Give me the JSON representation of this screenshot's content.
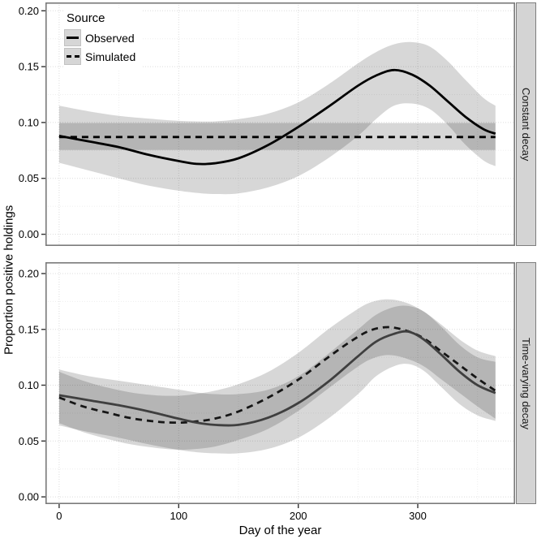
{
  "figure": {
    "x_axis_title": "Day of the year",
    "y_axis_title": "Proportion positive holdings"
  },
  "legend": {
    "title": "Source",
    "items": [
      {
        "label": "Observed",
        "line_style": "solid"
      },
      {
        "label": "Simulated",
        "line_style": "dashed"
      }
    ]
  },
  "facets": [
    {
      "label": "Constant decay"
    },
    {
      "label": "Time-varying decay"
    }
  ],
  "colors": {
    "ribbon_fill": "rgba(0,0,0,0.155)",
    "panel_border": "#7a7a7a",
    "strip_bg": "#d4d4d4",
    "grid_major": "#dcdcdc",
    "grid_minor": "#eeeeee",
    "tick_mark": "#333333"
  },
  "chart_data": [
    {
      "type": "line",
      "facet": "Constant decay",
      "xlabel": "Day of the year",
      "ylabel": "Proportion positive holdings",
      "xlim": [
        -11.5,
        381.4
      ],
      "ylim": [
        -0.0105,
        0.2075
      ],
      "x_ticks": [
        0,
        100,
        200,
        300
      ],
      "x_tick_labels": [
        "0",
        "100",
        "200",
        "300"
      ],
      "x_minor": [
        50,
        150,
        250,
        350
      ],
      "y_ticks": [
        0.0,
        0.05,
        0.1,
        0.15,
        0.2
      ],
      "y_tick_labels": [
        "0.00",
        "0.05",
        "0.10",
        "0.15",
        "0.20"
      ],
      "y_minor": [
        0.025,
        0.075,
        0.125,
        0.175
      ],
      "grid": true,
      "legend_position": "inside-top-left",
      "series": [
        {
          "name": "Simulated",
          "style": "dashed",
          "color": "#000000",
          "x": [
            0,
            365
          ],
          "y": [
            0.087,
            0.087
          ],
          "ribbon": {
            "x": [
              0,
              365
            ],
            "upper": [
              0.0995,
              0.0995
            ],
            "lower": [
              0.0755,
              0.0755
            ]
          }
        },
        {
          "name": "Observed",
          "style": "solid",
          "color": "#000000",
          "x": [
            0,
            25,
            50,
            75,
            100,
            115,
            130,
            150,
            175,
            200,
            225,
            250,
            265,
            280,
            295,
            310,
            325,
            340,
            355,
            365
          ],
          "y": [
            0.088,
            0.083,
            0.078,
            0.071,
            0.0655,
            0.063,
            0.0635,
            0.068,
            0.08,
            0.096,
            0.114,
            0.133,
            0.142,
            0.147,
            0.143,
            0.133,
            0.119,
            0.105,
            0.094,
            0.09
          ],
          "ribbon": {
            "x": [
              0,
              25,
              50,
              75,
              100,
              115,
              130,
              150,
              175,
              200,
              225,
              250,
              265,
              280,
              295,
              310,
              325,
              340,
              355,
              365
            ],
            "upper": [
              0.115,
              0.11,
              0.106,
              0.1035,
              0.1015,
              0.101,
              0.101,
              0.103,
              0.108,
              0.118,
              0.134,
              0.153,
              0.163,
              0.17,
              0.172,
              0.168,
              0.155,
              0.138,
              0.122,
              0.115
            ],
            "lower": [
              0.064,
              0.057,
              0.05,
              0.0435,
              0.039,
              0.037,
              0.036,
              0.0365,
              0.042,
              0.052,
              0.068,
              0.088,
              0.103,
              0.115,
              0.117,
              0.112,
              0.098,
              0.08,
              0.066,
              0.061
            ]
          }
        }
      ]
    },
    {
      "type": "line",
      "facet": "Time-varying decay",
      "xlabel": "Day of the year",
      "ylabel": "Proportion positive holdings",
      "xlim": [
        -11.5,
        381.4
      ],
      "ylim": [
        -0.0065,
        0.2102
      ],
      "x_ticks": [
        0,
        100,
        200,
        300
      ],
      "x_tick_labels": [
        "0",
        "100",
        "200",
        "300"
      ],
      "x_minor": [
        50,
        150,
        250,
        350
      ],
      "y_ticks": [
        0.0,
        0.05,
        0.1,
        0.15,
        0.2
      ],
      "y_tick_labels": [
        "0.00",
        "0.05",
        "0.10",
        "0.15",
        "0.20"
      ],
      "y_minor": [
        0.025,
        0.075,
        0.125,
        0.175
      ],
      "grid": true,
      "series": [
        {
          "name": "Simulated",
          "style": "dashed",
          "color": "#161616",
          "x": [
            0,
            20,
            40,
            60,
            80,
            95,
            110,
            130,
            150,
            175,
            200,
            225,
            245,
            260,
            275,
            290,
            305,
            320,
            335,
            350,
            365
          ],
          "y": [
            0.089,
            0.081,
            0.0755,
            0.0705,
            0.0675,
            0.0665,
            0.067,
            0.07,
            0.0765,
            0.089,
            0.105,
            0.125,
            0.14,
            0.149,
            0.152,
            0.149,
            0.142,
            0.13,
            0.118,
            0.106,
            0.095
          ],
          "ribbon": {
            "x": [
              0,
              20,
              40,
              60,
              80,
              95,
              110,
              130,
              150,
              175,
              200,
              225,
              245,
              260,
              275,
              290,
              305,
              320,
              335,
              350,
              365
            ],
            "upper": [
              0.112,
              0.104,
              0.098,
              0.0935,
              0.091,
              0.0905,
              0.0915,
              0.095,
              0.101,
              0.112,
              0.129,
              0.15,
              0.165,
              0.174,
              0.177,
              0.174,
              0.166,
              0.154,
              0.141,
              0.131,
              0.126
            ],
            "lower": [
              0.066,
              0.058,
              0.052,
              0.047,
              0.044,
              0.0425,
              0.0425,
              0.045,
              0.051,
              0.061,
              0.077,
              0.097,
              0.113,
              0.123,
              0.127,
              0.124,
              0.117,
              0.105,
              0.093,
              0.081,
              0.07
            ]
          }
        },
        {
          "name": "Observed",
          "style": "solid",
          "color": "#3f3f3f",
          "x": [
            0,
            25,
            50,
            75,
            100,
            115,
            130,
            150,
            175,
            200,
            225,
            250,
            265,
            280,
            292,
            305,
            320,
            335,
            350,
            365
          ],
          "y": [
            0.091,
            0.0865,
            0.082,
            0.0765,
            0.07,
            0.0665,
            0.0645,
            0.0645,
            0.071,
            0.084,
            0.103,
            0.126,
            0.139,
            0.146,
            0.148,
            0.141,
            0.127,
            0.112,
            0.1,
            0.093
          ],
          "ribbon": {
            "x": [
              0,
              25,
              50,
              75,
              100,
              115,
              130,
              150,
              175,
              200,
              225,
              250,
              265,
              280,
              292,
              305,
              320,
              335,
              350,
              365
            ],
            "upper": [
              0.114,
              0.108,
              0.104,
              0.1,
              0.096,
              0.0935,
              0.092,
              0.092,
              0.096,
              0.108,
              0.128,
              0.15,
              0.163,
              0.17,
              0.171,
              0.166,
              0.152,
              0.136,
              0.125,
              0.121
            ],
            "lower": [
              0.064,
              0.058,
              0.053,
              0.047,
              0.042,
              0.04,
              0.039,
              0.039,
              0.043,
              0.053,
              0.07,
              0.092,
              0.108,
              0.117,
              0.119,
              0.113,
              0.098,
              0.083,
              0.073,
              0.068
            ]
          }
        }
      ]
    }
  ]
}
